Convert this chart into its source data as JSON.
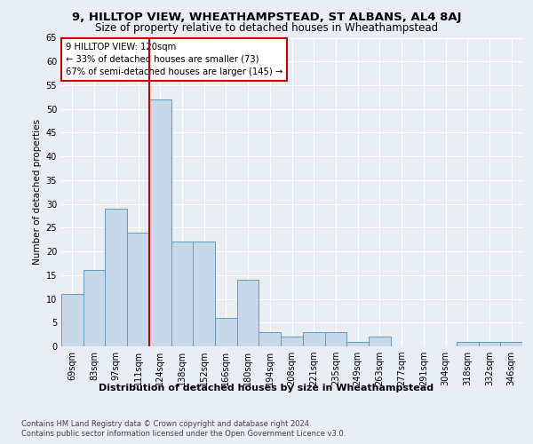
{
  "title1": "9, HILLTOP VIEW, WHEATHAMPSTEAD, ST ALBANS, AL4 8AJ",
  "title2": "Size of property relative to detached houses in Wheathampstead",
  "xlabel": "Distribution of detached houses by size in Wheathampstead",
  "ylabel": "Number of detached properties",
  "categories": [
    "69sqm",
    "83sqm",
    "97sqm",
    "111sqm",
    "124sqm",
    "138sqm",
    "152sqm",
    "166sqm",
    "180sqm",
    "194sqm",
    "208sqm",
    "221sqm",
    "235sqm",
    "249sqm",
    "263sqm",
    "277sqm",
    "291sqm",
    "304sqm",
    "318sqm",
    "332sqm",
    "346sqm"
  ],
  "values": [
    11,
    16,
    29,
    24,
    52,
    22,
    22,
    6,
    14,
    3,
    2,
    3,
    3,
    1,
    2,
    0,
    0,
    0,
    1,
    1,
    1
  ],
  "bar_color": "#c8d8e8",
  "bar_edge_color": "#6699bb",
  "vline_pos": 3.5,
  "annotation_line1": "9 HILLTOP VIEW: 120sqm",
  "annotation_line2": "← 33% of detached houses are smaller (73)",
  "annotation_line3": "67% of semi-detached houses are larger (145) →",
  "box_edge_color": "#cc0000",
  "ylim": [
    0,
    65
  ],
  "yticks": [
    0,
    5,
    10,
    15,
    20,
    25,
    30,
    35,
    40,
    45,
    50,
    55,
    60,
    65
  ],
  "footer1": "Contains HM Land Registry data © Crown copyright and database right 2024.",
  "footer2": "Contains public sector information licensed under the Open Government Licence v3.0.",
  "bg_color": "#e8eef4",
  "title_fontsize": 9.5,
  "subtitle_fontsize": 8.5,
  "xlabel_fontsize": 8,
  "ylabel_fontsize": 7.5,
  "tick_fontsize": 7,
  "footer_fontsize": 6
}
